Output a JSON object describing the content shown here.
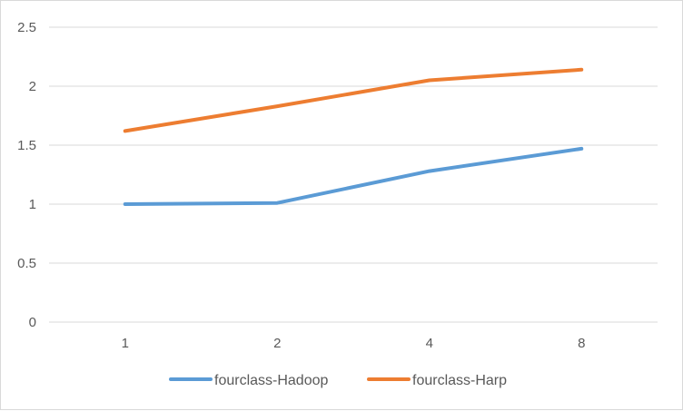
{
  "chart_data": {
    "type": "line",
    "title": "",
    "xlabel": "",
    "ylabel": "",
    "categories": [
      "1",
      "2",
      "4",
      "8"
    ],
    "ylim": [
      0,
      2.5
    ],
    "yticks": [
      "0",
      "0.5",
      "1",
      "1.5",
      "2",
      "2.5"
    ],
    "grid": true,
    "legend_position": "bottom",
    "series": [
      {
        "name": "fourclass-Hadoop",
        "color": "#5b9bd5",
        "values": [
          1.0,
          1.01,
          1.28,
          1.47
        ]
      },
      {
        "name": "fourclass-Harp",
        "color": "#ed7d31",
        "values": [
          1.62,
          1.83,
          2.05,
          2.14
        ]
      }
    ]
  }
}
